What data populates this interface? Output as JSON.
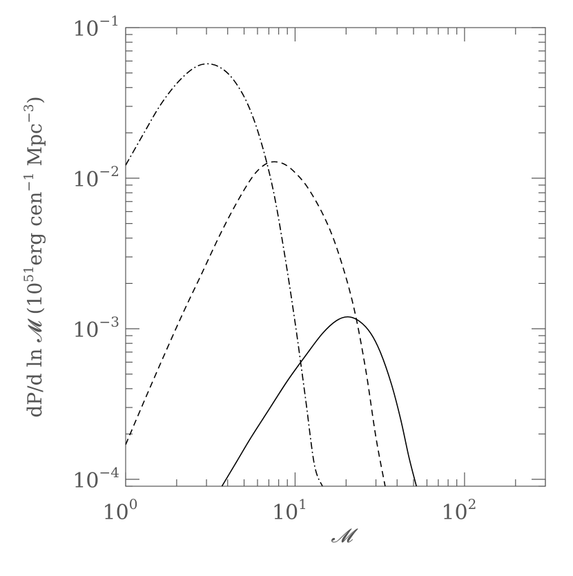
{
  "chart_data": {
    "type": "line",
    "xscale": "log",
    "yscale": "log",
    "xlim": [
      1,
      300
    ],
    "ylim": [
      9e-05,
      0.1
    ],
    "grid": false,
    "xlabel": "𝓜",
    "ylabel": {
      "prefix": "dP/d ln 𝓜 (10",
      "exp1": "51",
      "mid1": "erg cen",
      "exp2": "−1",
      "mid2": " Mpc",
      "exp3": "−3",
      "suffix": ")"
    },
    "x_ticks": [
      {
        "base": "10",
        "exp": "0",
        "value": 1
      },
      {
        "base": "10",
        "exp": "1",
        "value": 10
      },
      {
        "base": "10",
        "exp": "2",
        "value": 100
      }
    ],
    "y_ticks": [
      {
        "base": "10",
        "exp": "−4",
        "value": 0.0001
      },
      {
        "base": "10",
        "exp": "−3",
        "value": 0.001
      },
      {
        "base": "10",
        "exp": "−2",
        "value": 0.01
      },
      {
        "base": "10",
        "exp": "−1",
        "value": 0.1
      }
    ],
    "series": [
      {
        "style": "dash-dot",
        "color": "#000000",
        "x": [
          1.0,
          1.3,
          1.6,
          2.0,
          2.5,
          3.0,
          3.6,
          4.3,
          5.2,
          6.2,
          7.4,
          8.6,
          10.0,
          11.5,
          13.0,
          14.5
        ],
        "y": [
          0.0122,
          0.0205,
          0.0305,
          0.0425,
          0.0535,
          0.0575,
          0.0545,
          0.0455,
          0.0318,
          0.0185,
          0.0085,
          0.0033,
          0.0011,
          0.00035,
          0.000125,
          9e-05
        ]
      },
      {
        "style": "dashed",
        "color": "#000000",
        "x": [
          1.0,
          1.3,
          1.7,
          2.2,
          2.8,
          3.6,
          4.5,
          5.5,
          6.3,
          7.2,
          8.5,
          10.0,
          12.0,
          15.0,
          18.0,
          22.0,
          26.0,
          30.0,
          34.0
        ],
        "y": [
          0.00017,
          0.00034,
          0.00068,
          0.0013,
          0.0023,
          0.0042,
          0.0068,
          0.0099,
          0.0118,
          0.0128,
          0.0125,
          0.0109,
          0.0085,
          0.0054,
          0.0032,
          0.00145,
          0.00055,
          0.00019,
          9e-05
        ]
      },
      {
        "style": "solid",
        "color": "#000000",
        "x": [
          3.7,
          4.5,
          5.5,
          7.0,
          9.0,
          11.5,
          14.5,
          17.5,
          20.5,
          24.0,
          28.0,
          32.0,
          37.0,
          42.0,
          47.0,
          52.0
        ],
        "y": [
          9e-05,
          0.00013,
          0.00019,
          0.00029,
          0.00045,
          0.00066,
          0.00093,
          0.00113,
          0.0012,
          0.00112,
          0.00093,
          0.00069,
          0.00043,
          0.00025,
          0.00014,
          9e-05
        ]
      }
    ]
  }
}
